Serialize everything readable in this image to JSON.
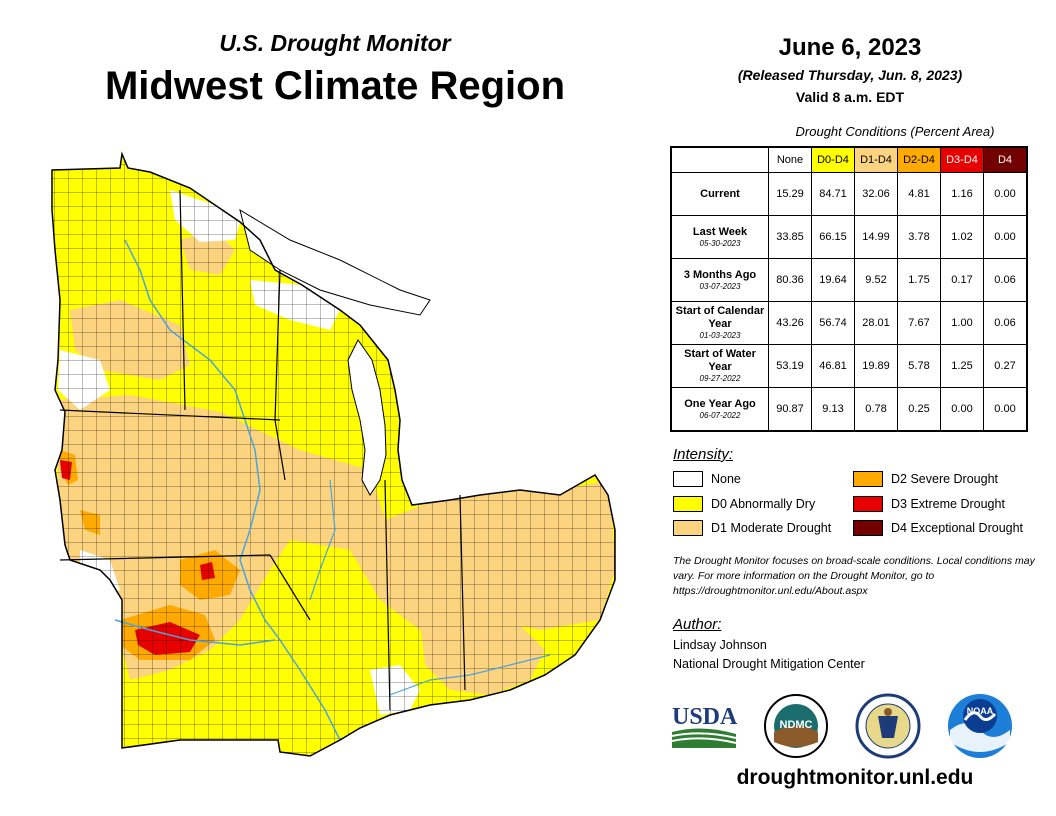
{
  "header": {
    "subtitle": "U.S. Drought Monitor",
    "title": "Midwest Climate Region"
  },
  "info": {
    "date": "June 6, 2023",
    "released": "(Released Thursday, Jun. 8, 2023)",
    "valid": "Valid 8 a.m. EDT"
  },
  "table": {
    "caption": "Drought Conditions (Percent Area)",
    "columns": [
      "None",
      "D0-D4",
      "D1-D4",
      "D2-D4",
      "D3-D4",
      "D4"
    ],
    "rows": [
      {
        "label": "Current",
        "date": "",
        "values": [
          "15.29",
          "84.71",
          "32.06",
          "4.81",
          "1.16",
          "0.00"
        ]
      },
      {
        "label": "Last Week",
        "date": "05-30-2023",
        "values": [
          "33.85",
          "66.15",
          "14.99",
          "3.78",
          "1.02",
          "0.00"
        ]
      },
      {
        "label": "3 Months Ago",
        "date": "03-07-2023",
        "values": [
          "80.36",
          "19.64",
          "9.52",
          "1.75",
          "0.17",
          "0.06"
        ]
      },
      {
        "label": "Start of Calendar Year",
        "date": "01-03-2023",
        "values": [
          "43.26",
          "56.74",
          "28.01",
          "7.67",
          "1.00",
          "0.06"
        ]
      },
      {
        "label": "Start of Water Year",
        "date": "09-27-2022",
        "values": [
          "53.19",
          "46.81",
          "19.89",
          "5.78",
          "1.25",
          "0.27"
        ]
      },
      {
        "label": "One Year Ago",
        "date": "06-07-2022",
        "values": [
          "90.87",
          "9.13",
          "0.78",
          "0.25",
          "0.00",
          "0.00"
        ]
      }
    ]
  },
  "legend": {
    "title": "Intensity:",
    "items": [
      {
        "label": "None",
        "color": "#ffffff"
      },
      {
        "label": "D0 Abnormally Dry",
        "color": "#ffff00"
      },
      {
        "label": "D1 Moderate Drought",
        "color": "#fcd37f"
      },
      {
        "label": "D2 Severe Drought",
        "color": "#ffaa00"
      },
      {
        "label": "D3 Extreme Drought",
        "color": "#e60000"
      },
      {
        "label": "D4 Exceptional Drought",
        "color": "#730000"
      }
    ]
  },
  "note": "The Drought Monitor focuses on broad-scale conditions. Local conditions may vary. For more information on the Drought Monitor, go to https://droughtmonitor.unl.edu/About.aspx",
  "author": {
    "title": "Author:",
    "name": "Lindsay Johnson",
    "org": "National Drought Mitigation Center"
  },
  "logos": {
    "usda": "USDA",
    "ndmc": "NDMC",
    "noaa": "NOAA"
  },
  "website": "droughtmonitor.unl.edu",
  "colors": {
    "water": "#4aa3df",
    "lake": "#ffffff",
    "border": "#000000"
  }
}
